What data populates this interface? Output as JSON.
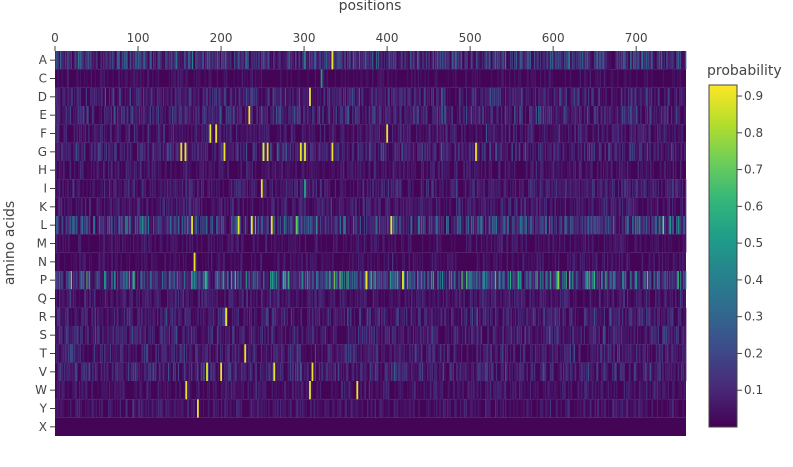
{
  "chart_data": {
    "type": "heatmap",
    "title": "",
    "xlabel": "positions",
    "ylabel": "amino acids",
    "x_range": [
      0,
      760
    ],
    "x_ticks": [
      0,
      100,
      200,
      300,
      400,
      500,
      600,
      700
    ],
    "rows": [
      "A",
      "C",
      "D",
      "E",
      "F",
      "G",
      "H",
      "I",
      "K",
      "L",
      "M",
      "N",
      "P",
      "Q",
      "R",
      "S",
      "T",
      "V",
      "W",
      "Y",
      "X"
    ],
    "row_mean_probability": [
      0.14,
      0.03,
      0.09,
      0.1,
      0.06,
      0.09,
      0.05,
      0.07,
      0.06,
      0.17,
      0.04,
      0.04,
      0.24,
      0.06,
      0.08,
      0.08,
      0.08,
      0.09,
      0.05,
      0.05,
      0.01
    ],
    "peaks": [
      {
        "row": "A",
        "position": 333,
        "value": 0.9
      },
      {
        "row": "C",
        "position": 320,
        "value": 0.5
      },
      {
        "row": "D",
        "position": 306,
        "value": 0.9
      },
      {
        "row": "E",
        "position": 233,
        "value": 0.9
      },
      {
        "row": "F",
        "position": 186,
        "value": 0.9
      },
      {
        "row": "F",
        "position": 193,
        "value": 0.9
      },
      {
        "row": "F",
        "position": 399,
        "value": 0.9
      },
      {
        "row": "G",
        "position": 151,
        "value": 0.9
      },
      {
        "row": "G",
        "position": 156,
        "value": 0.9
      },
      {
        "row": "G",
        "position": 203,
        "value": 0.9
      },
      {
        "row": "G",
        "position": 250,
        "value": 0.9
      },
      {
        "row": "G",
        "position": 255,
        "value": 0.9
      },
      {
        "row": "G",
        "position": 295,
        "value": 0.9
      },
      {
        "row": "G",
        "position": 300,
        "value": 0.9
      },
      {
        "row": "G",
        "position": 333,
        "value": 0.9
      },
      {
        "row": "G",
        "position": 506,
        "value": 0.9
      },
      {
        "row": "I",
        "position": 248,
        "value": 0.9
      },
      {
        "row": "I",
        "position": 300,
        "value": 0.55
      },
      {
        "row": "L",
        "position": 164,
        "value": 0.9
      },
      {
        "row": "L",
        "position": 220,
        "value": 0.9
      },
      {
        "row": "L",
        "position": 236,
        "value": 0.9
      },
      {
        "row": "L",
        "position": 260,
        "value": 0.9
      },
      {
        "row": "L",
        "position": 290,
        "value": 0.7
      },
      {
        "row": "L",
        "position": 404,
        "value": 0.9
      },
      {
        "row": "N",
        "position": 167,
        "value": 0.9
      },
      {
        "row": "P",
        "position": 374,
        "value": 0.9
      },
      {
        "row": "P",
        "position": 418,
        "value": 0.9
      },
      {
        "row": "P",
        "position": 605,
        "value": 0.75
      },
      {
        "row": "R",
        "position": 205,
        "value": 0.9
      },
      {
        "row": "T",
        "position": 228,
        "value": 0.9
      },
      {
        "row": "V",
        "position": 182,
        "value": 0.9
      },
      {
        "row": "V",
        "position": 199,
        "value": 0.9
      },
      {
        "row": "V",
        "position": 263,
        "value": 0.9
      },
      {
        "row": "V",
        "position": 309,
        "value": 0.9
      },
      {
        "row": "W",
        "position": 157,
        "value": 0.9
      },
      {
        "row": "W",
        "position": 306,
        "value": 0.9
      },
      {
        "row": "W",
        "position": 363,
        "value": 0.9
      },
      {
        "row": "Y",
        "position": 171,
        "value": 0.9
      }
    ],
    "colorbar": {
      "title": "probability",
      "range": [
        0.0,
        0.93
      ],
      "ticks": [
        0.1,
        0.2,
        0.3,
        0.4,
        0.5,
        0.6,
        0.7,
        0.8,
        0.9
      ],
      "colorscale": [
        "#440154",
        "#482878",
        "#3e4989",
        "#31688e",
        "#26828e",
        "#1f9e89",
        "#35b779",
        "#6ece58",
        "#b5de2b",
        "#fde725"
      ]
    },
    "grid": false
  }
}
